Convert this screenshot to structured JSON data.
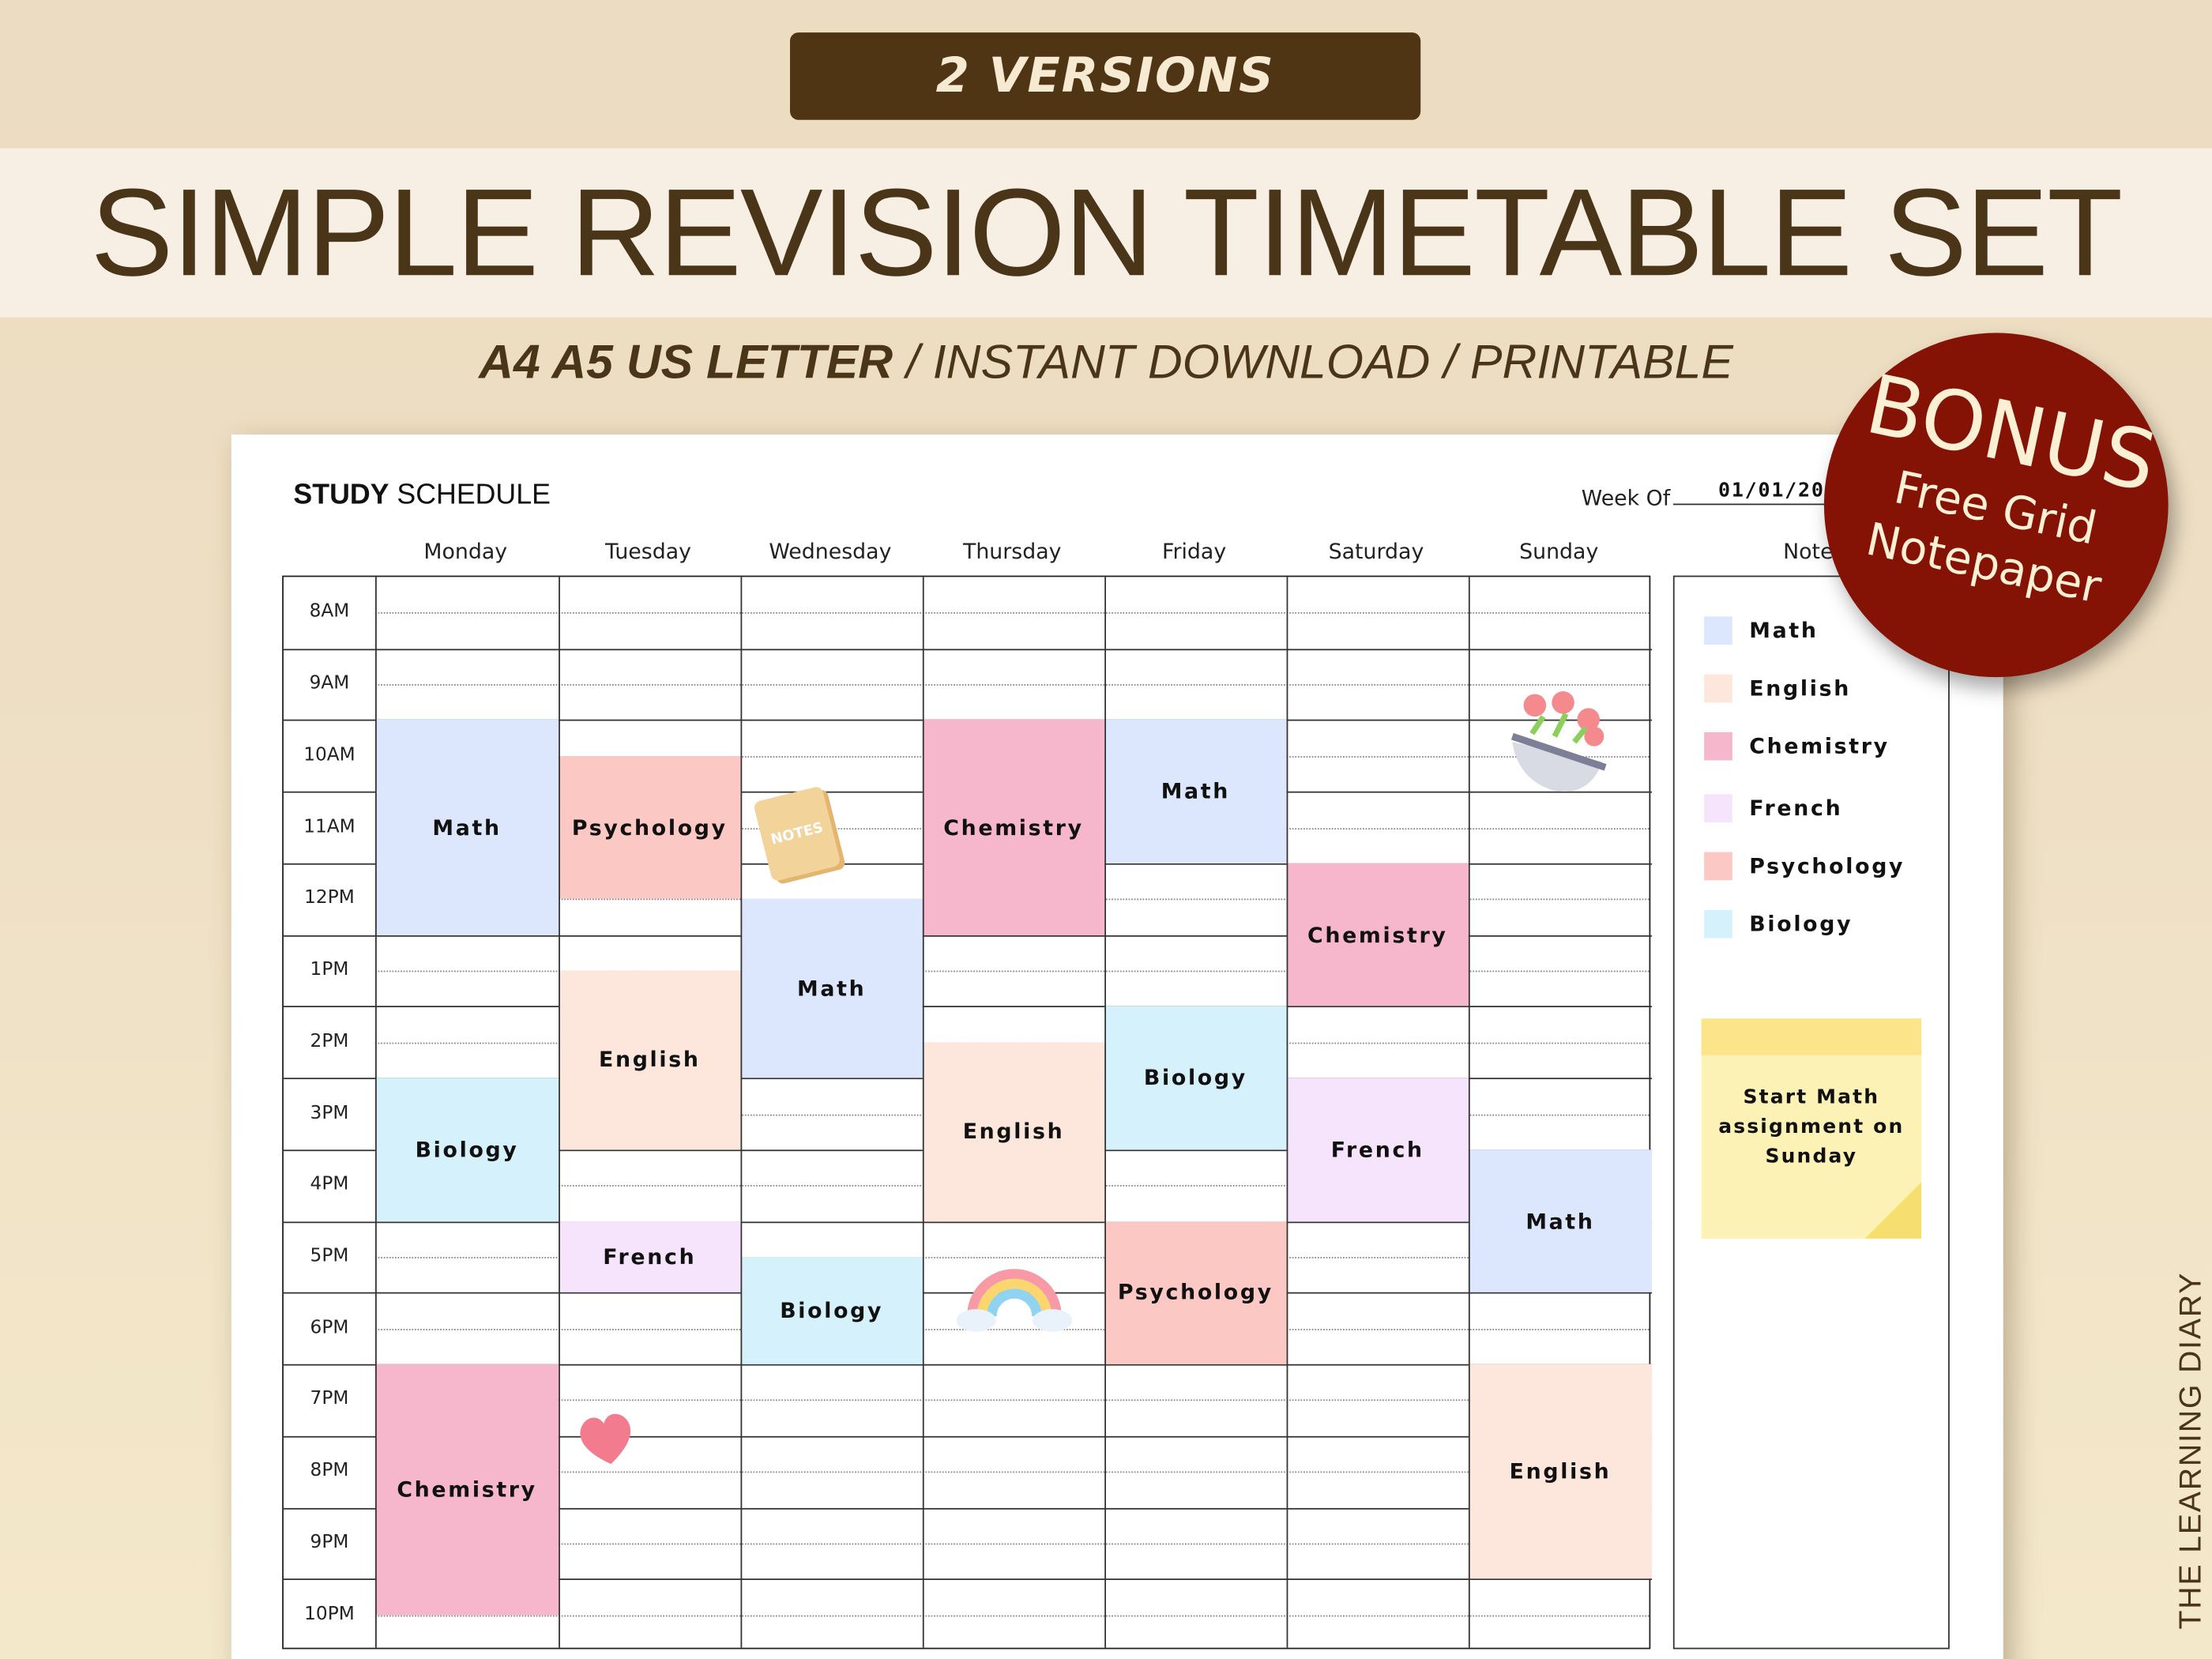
{
  "header": {
    "versions_label": "2 VERSIONS",
    "title": "SIMPLE REVISION TIMETABLE SET",
    "subtitle_bold": "A4 A5 US LETTER",
    "subtitle_rest": " / INSTANT DOWNLOAD / PRINTABLE"
  },
  "badge": {
    "line1": "BONUS",
    "line2": "Free Grid",
    "line3": "Notepaper",
    "color": "#851305"
  },
  "brand": "THE LEARNING DIARY",
  "schedule": {
    "title_bold": "STUDY",
    "title_rest": " SCHEDULE",
    "week_of_label": "Week Of",
    "week_of_value": "01/01/202",
    "notes_label": "Notes",
    "days": [
      "Monday",
      "Tuesday",
      "Wednesday",
      "Thursday",
      "Friday",
      "Saturday",
      "Sunday"
    ],
    "times": [
      "8AM",
      "9AM",
      "10AM",
      "11AM",
      "12PM",
      "1PM",
      "2PM",
      "3PM",
      "4PM",
      "5PM",
      "6PM",
      "7PM",
      "8PM",
      "9PM",
      "10PM"
    ],
    "subject_colors": {
      "Math": "#dce6fd",
      "English": "#fde6dc",
      "Chemistry": "#f6b6cb",
      "French": "#f6e4fd",
      "Psychology": "#fcc8c4",
      "Biology": "#d5f1fc"
    },
    "events": [
      {
        "day": 0,
        "start": 10,
        "end": 13,
        "subject": "Math"
      },
      {
        "day": 0,
        "start": 15,
        "end": 17,
        "subject": "Biology"
      },
      {
        "day": 0,
        "start": 19,
        "end": 22.5,
        "subject": "Chemistry"
      },
      {
        "day": 1,
        "start": 10.5,
        "end": 12.5,
        "subject": "Psychology"
      },
      {
        "day": 1,
        "start": 13.5,
        "end": 16,
        "subject": "English"
      },
      {
        "day": 1,
        "start": 17,
        "end": 18,
        "subject": "French"
      },
      {
        "day": 2,
        "start": 12.5,
        "end": 15,
        "subject": "Math"
      },
      {
        "day": 2,
        "start": 17.5,
        "end": 19,
        "subject": "Biology"
      },
      {
        "day": 3,
        "start": 10,
        "end": 13,
        "subject": "Chemistry"
      },
      {
        "day": 3,
        "start": 14.5,
        "end": 17,
        "subject": "English"
      },
      {
        "day": 4,
        "start": 10,
        "end": 12,
        "subject": "Math"
      },
      {
        "day": 4,
        "start": 14,
        "end": 16,
        "subject": "Biology"
      },
      {
        "day": 4,
        "start": 17,
        "end": 19,
        "subject": "Psychology"
      },
      {
        "day": 5,
        "start": 12,
        "end": 14,
        "subject": "Chemistry"
      },
      {
        "day": 5,
        "start": 15,
        "end": 17,
        "subject": "French"
      },
      {
        "day": 6,
        "start": 16,
        "end": 18,
        "subject": "Math"
      },
      {
        "day": 6,
        "start": 19,
        "end": 22,
        "subject": "English"
      }
    ],
    "legend": [
      "Math",
      "English",
      "Chemistry",
      "French",
      "Psychology",
      "Biology"
    ],
    "sticky_note": "Start Math assignment on Sunday",
    "notes_sticker_text": "NOTES"
  }
}
